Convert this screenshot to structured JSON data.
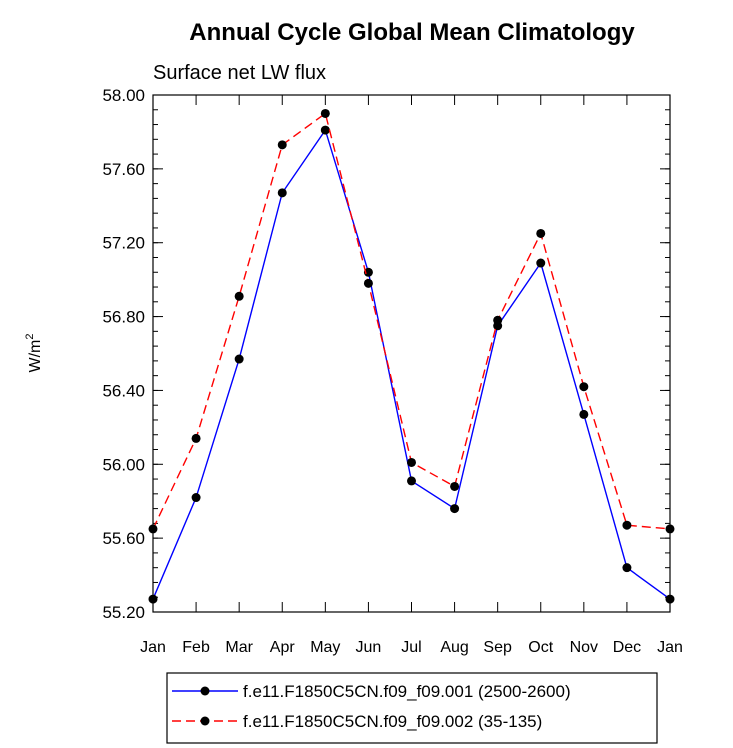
{
  "chart_data": {
    "type": "line",
    "title": "Annual Cycle Global Mean Climatology",
    "subtitle": "Surface net LW flux",
    "xlabel": "",
    "ylabel_base": "W/m",
    "ylabel_sup": "2",
    "categories": [
      "Jan",
      "Feb",
      "Mar",
      "Apr",
      "May",
      "Jun",
      "Jul",
      "Aug",
      "Sep",
      "Oct",
      "Nov",
      "Dec",
      "Jan"
    ],
    "ylim": [
      55.2,
      58.0
    ],
    "yticks": [
      "55.20",
      "55.60",
      "56.00",
      "56.40",
      "56.80",
      "57.20",
      "57.60",
      "58.00"
    ],
    "series": [
      {
        "name": "f.e11.F1850C5CN.f09_f09.001 (2500-2600)",
        "color": "#0000ff",
        "dash": "solid",
        "values": [
          55.27,
          55.82,
          56.57,
          57.47,
          57.81,
          57.04,
          55.91,
          55.76,
          56.75,
          57.09,
          56.27,
          55.44,
          55.27
        ]
      },
      {
        "name": "f.e11.F1850C5CN.f09_f09.002 (35-135)",
        "color": "#ff0000",
        "dash": "dashed",
        "values": [
          55.65,
          56.14,
          56.91,
          57.73,
          57.9,
          56.98,
          56.01,
          55.88,
          56.78,
          57.25,
          56.42,
          55.67,
          55.65
        ]
      }
    ]
  }
}
